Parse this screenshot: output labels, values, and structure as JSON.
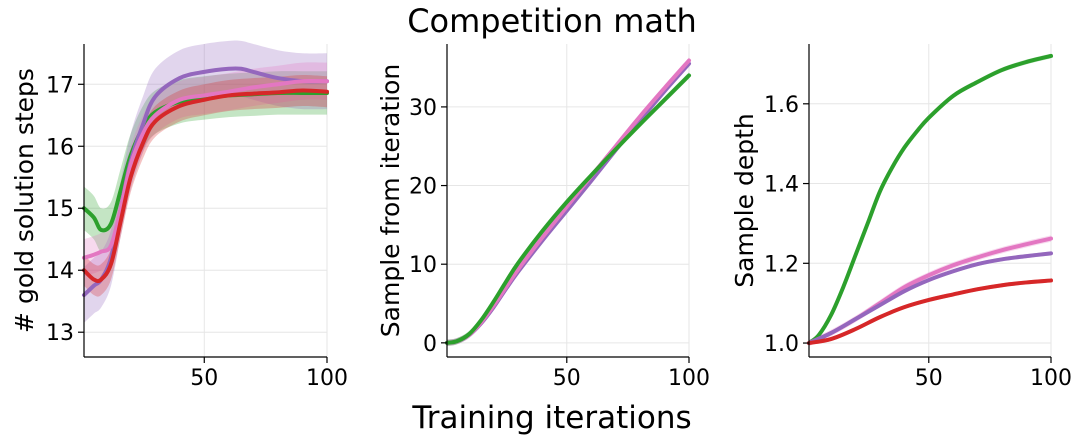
{
  "figure": {
    "title": "Competition math",
    "xlabel": "Training iterations"
  },
  "colors": {
    "series_a": "#2ca02c",
    "series_b": "#9467bd",
    "series_c": "#e377c2",
    "series_d": "#d62728"
  },
  "chart_data": [
    {
      "type": "line",
      "ylabel": "# gold solution steps",
      "xlim": [
        1,
        100
      ],
      "ylim": [
        12.6,
        17.65
      ],
      "xticks": [
        50,
        100
      ],
      "yticks": [
        13,
        14,
        15,
        16,
        17
      ],
      "grid": true,
      "series": [
        {
          "color": "#2ca02c",
          "band": 0.35,
          "x": [
            1,
            5,
            8,
            12,
            16,
            20,
            25,
            30,
            40,
            50,
            60,
            70,
            80,
            90,
            100
          ],
          "y": [
            15.0,
            14.85,
            14.65,
            14.75,
            15.3,
            15.85,
            16.3,
            16.55,
            16.72,
            16.78,
            16.82,
            16.84,
            16.86,
            16.86,
            16.86
          ]
        },
        {
          "color": "#9467bd",
          "band": 0.45,
          "x": [
            1,
            5,
            8,
            12,
            16,
            20,
            25,
            30,
            40,
            50,
            60,
            65,
            70,
            80,
            90,
            100
          ],
          "y": [
            13.6,
            13.75,
            13.85,
            14.2,
            15.0,
            15.75,
            16.35,
            16.8,
            17.1,
            17.2,
            17.25,
            17.25,
            17.2,
            17.1,
            17.05,
            17.05
          ]
        },
        {
          "color": "#e377c2",
          "band": 0.3,
          "x": [
            1,
            5,
            8,
            12,
            16,
            20,
            25,
            30,
            40,
            50,
            60,
            70,
            80,
            90,
            100
          ],
          "y": [
            14.2,
            14.25,
            14.3,
            14.4,
            15.0,
            15.7,
            16.2,
            16.5,
            16.75,
            16.82,
            16.88,
            16.95,
            17.0,
            17.05,
            17.05
          ]
        },
        {
          "color": "#d62728",
          "band": 0.25,
          "x": [
            1,
            5,
            8,
            12,
            16,
            20,
            25,
            30,
            40,
            50,
            60,
            70,
            80,
            90,
            100
          ],
          "y": [
            14.0,
            13.85,
            13.85,
            14.1,
            14.8,
            15.5,
            16.05,
            16.4,
            16.65,
            16.75,
            16.82,
            16.85,
            16.87,
            16.9,
            16.88
          ]
        }
      ]
    },
    {
      "type": "line",
      "ylabel": "Sample from iteration",
      "xlim": [
        1,
        100
      ],
      "ylim": [
        -1.8,
        38
      ],
      "xticks": [
        50,
        100
      ],
      "yticks": [
        0,
        10,
        20,
        30
      ],
      "grid": true,
      "series": [
        {
          "color": "#9467bd",
          "band": 0.4,
          "x": [
            1,
            5,
            10,
            15,
            20,
            25,
            30,
            40,
            50,
            60,
            70,
            80,
            90,
            100
          ],
          "y": [
            0,
            0.2,
            1.0,
            2.5,
            4.5,
            6.8,
            9.0,
            13.0,
            16.8,
            20.6,
            24.5,
            28.3,
            32.0,
            35.5
          ]
        },
        {
          "color": "#e377c2",
          "band": 0.4,
          "x": [
            1,
            5,
            10,
            15,
            20,
            25,
            30,
            40,
            50,
            60,
            70,
            80,
            90,
            100
          ],
          "y": [
            0,
            0.2,
            1.0,
            2.6,
            4.7,
            7.0,
            9.3,
            13.4,
            17.3,
            21.2,
            25.0,
            28.8,
            32.4,
            35.9
          ]
        },
        {
          "color": "#2ca02c",
          "band": 0.4,
          "x": [
            1,
            5,
            10,
            15,
            20,
            25,
            30,
            40,
            50,
            60,
            70,
            80,
            90,
            100
          ],
          "y": [
            0,
            0.2,
            1.1,
            2.9,
            5.2,
            7.7,
            10.1,
            14.2,
            17.9,
            21.3,
            24.6,
            27.8,
            30.9,
            34.0
          ]
        }
      ]
    },
    {
      "type": "line",
      "ylabel": "Sample depth",
      "xlim": [
        1,
        100
      ],
      "ylim": [
        0.965,
        1.75
      ],
      "xticks": [
        50,
        100
      ],
      "yticks": [
        1.0,
        1.2,
        1.4,
        1.6
      ],
      "grid": true,
      "series": [
        {
          "color": "#2ca02c",
          "band": 0.006,
          "x": [
            1,
            5,
            10,
            15,
            20,
            25,
            30,
            35,
            40,
            45,
            50,
            60,
            70,
            80,
            90,
            100
          ],
          "y": [
            1.0,
            1.02,
            1.07,
            1.14,
            1.22,
            1.3,
            1.38,
            1.44,
            1.49,
            1.53,
            1.565,
            1.62,
            1.655,
            1.685,
            1.705,
            1.72
          ]
        },
        {
          "color": "#e377c2",
          "band": 0.008,
          "x": [
            1,
            10,
            20,
            30,
            40,
            50,
            60,
            70,
            80,
            90,
            100
          ],
          "y": [
            1.0,
            1.025,
            1.06,
            1.1,
            1.14,
            1.17,
            1.195,
            1.215,
            1.233,
            1.248,
            1.262
          ]
        },
        {
          "color": "#9467bd",
          "band": 0.005,
          "x": [
            1,
            10,
            20,
            30,
            40,
            50,
            60,
            70,
            80,
            90,
            100
          ],
          "y": [
            1.0,
            1.025,
            1.06,
            1.095,
            1.13,
            1.158,
            1.18,
            1.198,
            1.21,
            1.218,
            1.225
          ]
        },
        {
          "color": "#d62728",
          "band": 0.005,
          "x": [
            1,
            10,
            20,
            30,
            40,
            50,
            60,
            70,
            80,
            90,
            100
          ],
          "y": [
            1.0,
            1.01,
            1.035,
            1.065,
            1.09,
            1.108,
            1.122,
            1.135,
            1.145,
            1.152,
            1.157
          ]
        }
      ]
    }
  ]
}
